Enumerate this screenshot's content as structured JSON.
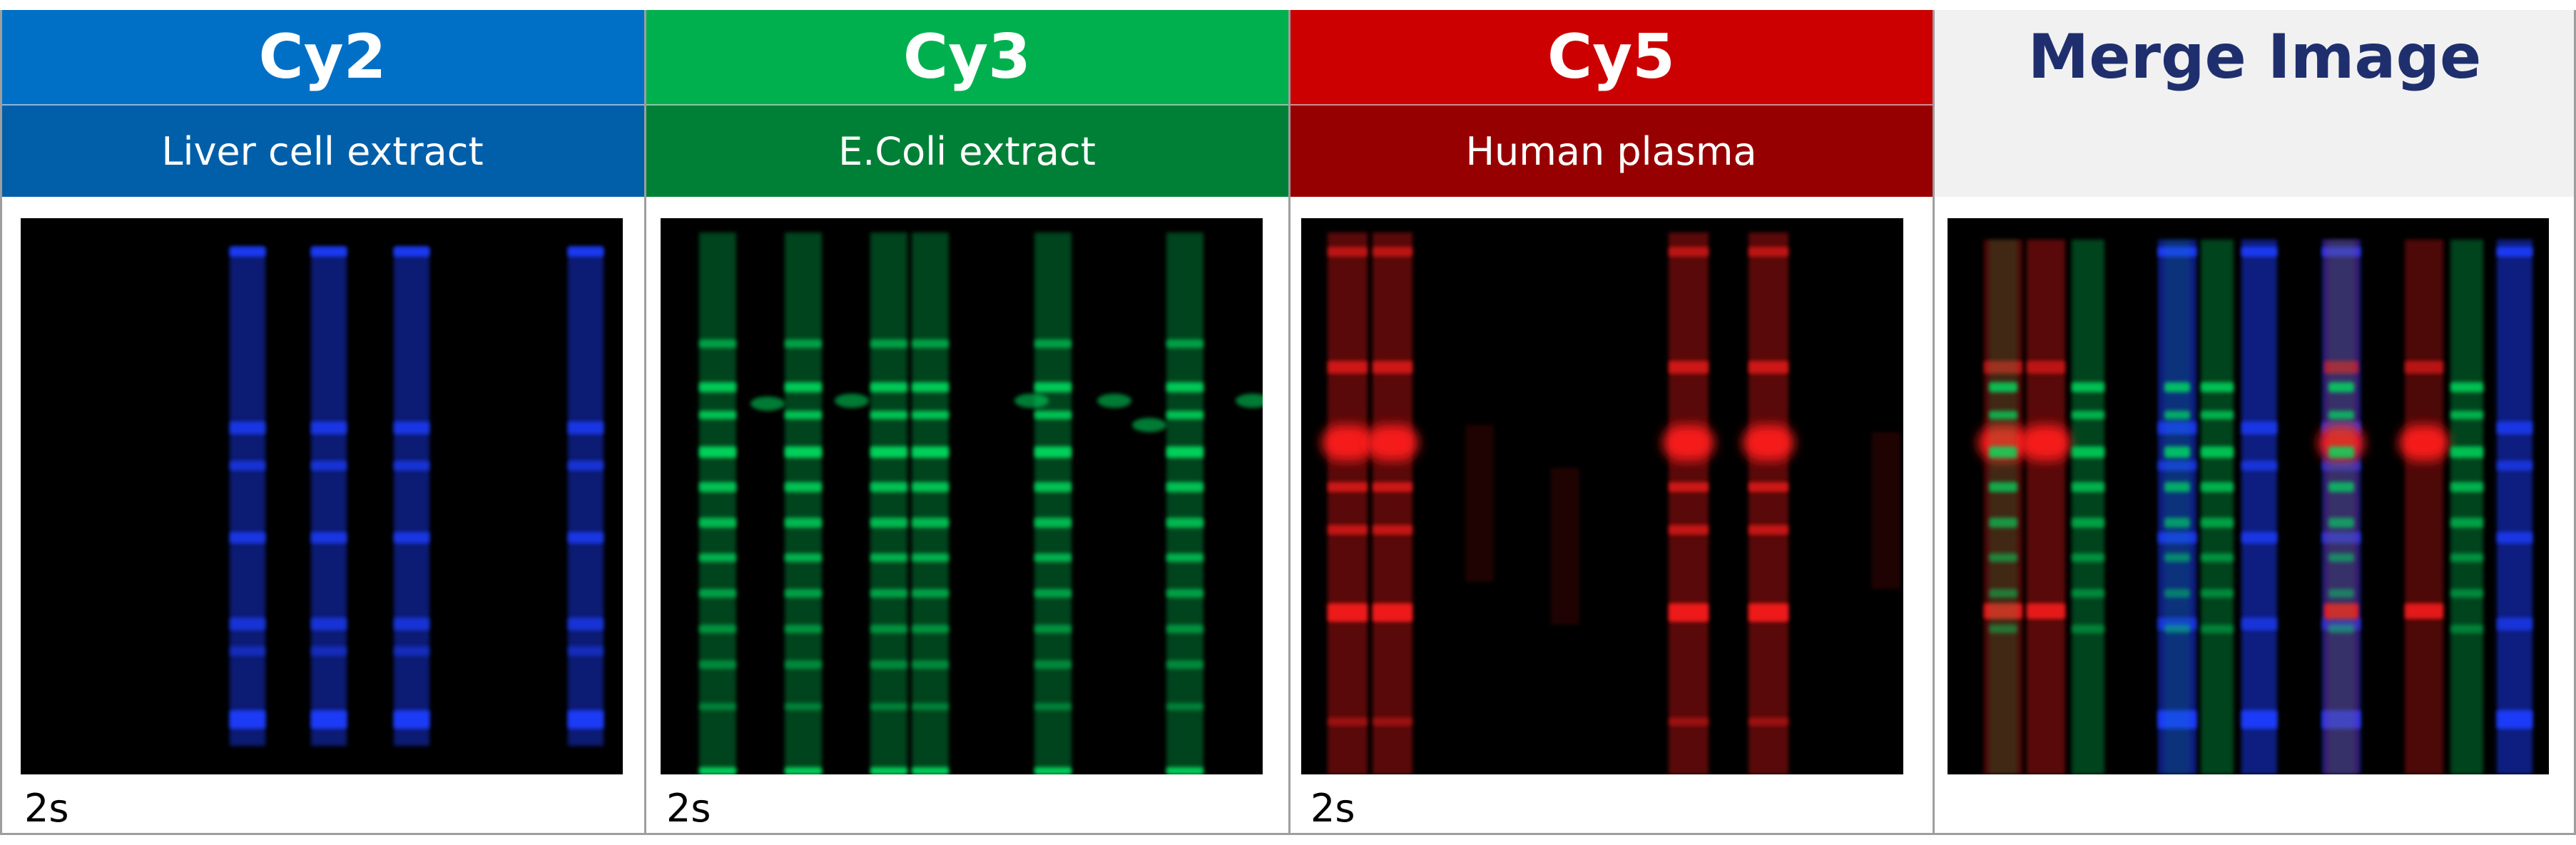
{
  "panels": [
    {
      "channel": "Cy2",
      "sample": "Liver cell extract",
      "exposure": "2s",
      "header_color": "#0070c6",
      "sub_color": "#005fa8",
      "fluor_color": "#1f3cff"
    },
    {
      "channel": "Cy3",
      "sample": "E.Coli extract",
      "exposure": "2s",
      "header_color": "#00b04f",
      "sub_color": "#008036",
      "fluor_color": "#00e060"
    },
    {
      "channel": "Cy5",
      "sample": "Human plasma",
      "exposure": "2s",
      "header_color": "#cc0000",
      "sub_color": "#970000",
      "fluor_color": "#ff1a1a"
    },
    {
      "channel": "Merge Image",
      "sample": "",
      "exposure": "",
      "header_color": "#f1f1f1",
      "sub_color": "#f1f1f1",
      "title_color": "#1f2f6e"
    }
  ]
}
